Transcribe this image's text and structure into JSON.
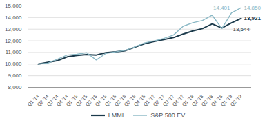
{
  "chart_data": {
    "type": "line",
    "categories": [
      "Q1 '14",
      "Q2 '14",
      "Q3 '14",
      "Q4 '14",
      "Q1 '15",
      "Q2 '15",
      "Q3 '15",
      "Q4 '15",
      "Q1 '16",
      "Q2 '16",
      "Q3 '16",
      "Q4 '16",
      "Q1 '17",
      "Q2 '17",
      "Q3 '17",
      "Q4 '17",
      "Q1 '18",
      "Q2 '18",
      "Q3 '18",
      "Q4 '18",
      "Q1 '19",
      "Q2 '19"
    ],
    "series": [
      {
        "name": "LMMI",
        "color": "#1b3a4b",
        "values": [
          10000,
          10150,
          10300,
          10620,
          10750,
          10820,
          10780,
          10980,
          11050,
          11150,
          11450,
          11750,
          11950,
          12100,
          12280,
          12580,
          12850,
          13050,
          13450,
          13100,
          13544,
          13921
        ]
      },
      {
        "name": "S&P 500 EV",
        "color": "#8ab8c5",
        "values": [
          10000,
          10080,
          10420,
          10780,
          10850,
          10980,
          10350,
          10920,
          11050,
          11180,
          11480,
          11820,
          12000,
          12200,
          12500,
          13250,
          13550,
          13750,
          14200,
          13050,
          14401,
          14850
        ]
      }
    ],
    "ylim": [
      8000,
      15000
    ],
    "yticks": [
      {
        "value": 8000,
        "label": "8,000"
      },
      {
        "value": 9000,
        "label": "9,000"
      },
      {
        "value": 10000,
        "label": "10,000"
      },
      {
        "value": 11000,
        "label": "11,000"
      },
      {
        "value": 12000,
        "label": "12,000"
      },
      {
        "value": 13000,
        "label": "13,000"
      },
      {
        "value": 14000,
        "label": "14,000"
      },
      {
        "value": 15000,
        "label": "15,000"
      }
    ],
    "grid": true,
    "legend": "bottom",
    "annotations": [
      {
        "text": "14,850",
        "x": "Q2 '19",
        "y": 14850,
        "color": "#8ab8c5"
      },
      {
        "text": "13,921",
        "x": "Q2 '19",
        "y": 13921,
        "color": "#1b3a4b"
      },
      {
        "text": "13,544",
        "x": "Q1 '19",
        "y": 13544,
        "color": "#1b3a4b"
      },
      {
        "text": "14,401",
        "x": "Q1 '19",
        "y": 14401,
        "color": "#8ab8c5"
      }
    ]
  }
}
